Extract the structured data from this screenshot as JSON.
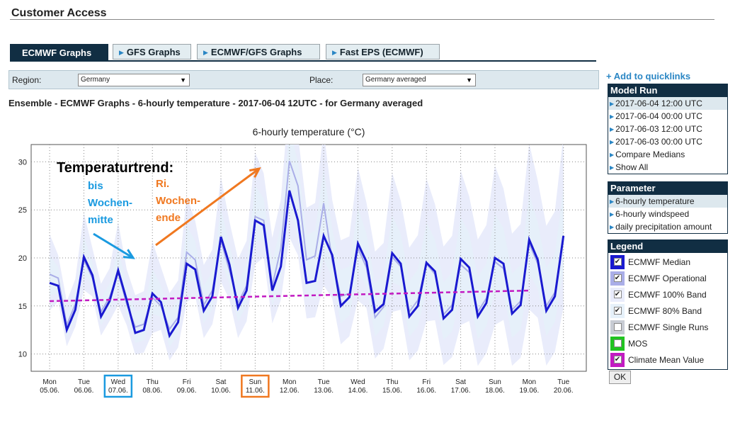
{
  "page": {
    "title": "Customer Access"
  },
  "tabs": [
    {
      "label": "ECMWF Graphs",
      "active": true
    },
    {
      "label": "GFS Graphs",
      "active": false
    },
    {
      "label": "ECMWF/GFS Graphs",
      "active": false
    },
    {
      "label": "Fast EPS (ECMWF)",
      "active": false
    }
  ],
  "filters": {
    "region_label": "Region:",
    "region_value": "Germany",
    "place_label": "Place:",
    "place_value": "Germany averaged"
  },
  "subtitle": "Ensemble - ECMWF Graphs - 6-hourly temperature - 2017-06-04 12UTC - for Germany averaged",
  "quicklinks_label": "Add to quicklinks",
  "model_run": {
    "title": "Model Run",
    "items": [
      "2017-06-04 12:00 UTC",
      "2017-06-04 00:00 UTC",
      "2017-06-03 12:00 UTC",
      "2017-06-03 00:00 UTC",
      "Compare Medians",
      "Show All"
    ],
    "selected": 0
  },
  "parameter": {
    "title": "Parameter",
    "items": [
      "6-hourly temperature",
      "6-hourly windspeed",
      "daily precipitation amount"
    ],
    "selected": 0
  },
  "legend": {
    "title": "Legend",
    "items": [
      {
        "label": "ECMWF Median",
        "color": "#1a1ad0",
        "checked": true
      },
      {
        "label": "ECMWF Operational",
        "color": "#aaaee8",
        "checked": true
      },
      {
        "label": "ECMWF 100% Band",
        "color": "#e9ecfb",
        "checked": true
      },
      {
        "label": "ECMWF 80% Band",
        "color": "#e6f1fa",
        "checked": true
      },
      {
        "label": "ECMWF Single Runs",
        "color": "#c8ccd4",
        "checked": false
      },
      {
        "label": "MOS",
        "color": "#21c321",
        "checked": false
      },
      {
        "label": "Climate Mean Value",
        "color": "#c21ac2",
        "checked": true
      }
    ],
    "ok_label": "OK"
  },
  "chart_data": {
    "type": "line",
    "title": "6-hourly temperature (°C)",
    "ylim": [
      8.2,
      31.8
    ],
    "yticks": [
      10,
      15,
      20,
      25,
      30
    ],
    "x_start": "2017-06-05 00:00",
    "x_step_hours": 6,
    "grid": true,
    "day_ticks": [
      {
        "dow": "Mon",
        "date": "05.06."
      },
      {
        "dow": "Tue",
        "date": "06.06."
      },
      {
        "dow": "Wed",
        "date": "07.06."
      },
      {
        "dow": "Thu",
        "date": "08.06."
      },
      {
        "dow": "Fri",
        "date": "09.06."
      },
      {
        "dow": "Sat",
        "date": "10.06."
      },
      {
        "dow": "Sun",
        "date": "11.06."
      },
      {
        "dow": "Mon",
        "date": "12.06."
      },
      {
        "dow": "Tue",
        "date": "13.06."
      },
      {
        "dow": "Wed",
        "date": "14.06."
      },
      {
        "dow": "Thu",
        "date": "15.06."
      },
      {
        "dow": "Fri",
        "date": "16.06."
      },
      {
        "dow": "Sat",
        "date": "17.06."
      },
      {
        "dow": "Sun",
        "date": "18.06."
      },
      {
        "dow": "Mon",
        "date": "19.06."
      },
      {
        "dow": "Tue",
        "date": "20.06."
      }
    ],
    "highlight_days": [
      {
        "index": 2,
        "color": "#1a9ae0"
      },
      {
        "index": 6,
        "color": "#f07820"
      }
    ],
    "series": [
      {
        "name": "ECMWF Median",
        "color": "#1a1ad0",
        "values": [
          17.4,
          17.1,
          12.5,
          14.6,
          20.1,
          18.2,
          13.9,
          15.5,
          18.7,
          15.6,
          12.2,
          12.5,
          16.3,
          15.4,
          11.9,
          13.3,
          19.4,
          18.8,
          14.5,
          16.0,
          22.2,
          19.3,
          14.8,
          16.6,
          23.9,
          23.4,
          16.6,
          19.1,
          27.0,
          23.9,
          17.4,
          17.6,
          22.3,
          20.3,
          15.0,
          15.9,
          21.5,
          19.6,
          14.4,
          15.2,
          20.5,
          19.4,
          13.9,
          15.0,
          19.5,
          18.6,
          13.7,
          14.6,
          19.9,
          19.0,
          13.9,
          15.3,
          20.0,
          19.4,
          14.2,
          15.1,
          21.9,
          19.8,
          14.5,
          16.0,
          22.3
        ]
      },
      {
        "name": "ECMWF Operational",
        "color": "#aaaee8",
        "values": [
          18.3,
          17.9,
          13.0,
          15.2,
          19.8,
          17.9,
          14.4,
          15.9,
          18.5,
          15.2,
          12.8,
          13.1,
          15.9,
          15.0,
          12.6,
          13.8,
          20.6,
          19.8,
          15.1,
          16.6,
          21.8,
          18.7,
          15.3,
          17.1,
          24.3,
          23.9,
          17.1,
          21.0,
          30.1,
          27.5,
          19.8,
          20.2,
          25.7,
          19.7,
          16.0,
          16.3,
          21.0,
          19.0,
          13.8,
          14.9,
          20.1,
          19.1,
          14.4,
          15.6,
          19.4,
          18.3,
          14.1,
          15.1,
          19.3,
          18.5,
          14.4,
          15.8,
          19.6,
          18.9,
          14.6,
          15.5,
          21.5,
          19.4,
          15.0,
          16.4,
          22.0
        ]
      },
      {
        "name": "Climate Mean Value",
        "color": "#c21ac2",
        "values": [
          15.5,
          16.6
        ]
      }
    ]
  },
  "annotations": [
    {
      "text": "Temperaturtrend:",
      "color": "#000000"
    },
    {
      "text": "bis Wochen-mitte",
      "lines": [
        "bis",
        "Wochen-",
        "mitte"
      ],
      "color": "#1a9ae0"
    },
    {
      "text": "Ri. Wochen-ende",
      "lines": [
        "Ri.",
        "Wochen-",
        "ende"
      ],
      "color": "#f07820"
    }
  ]
}
